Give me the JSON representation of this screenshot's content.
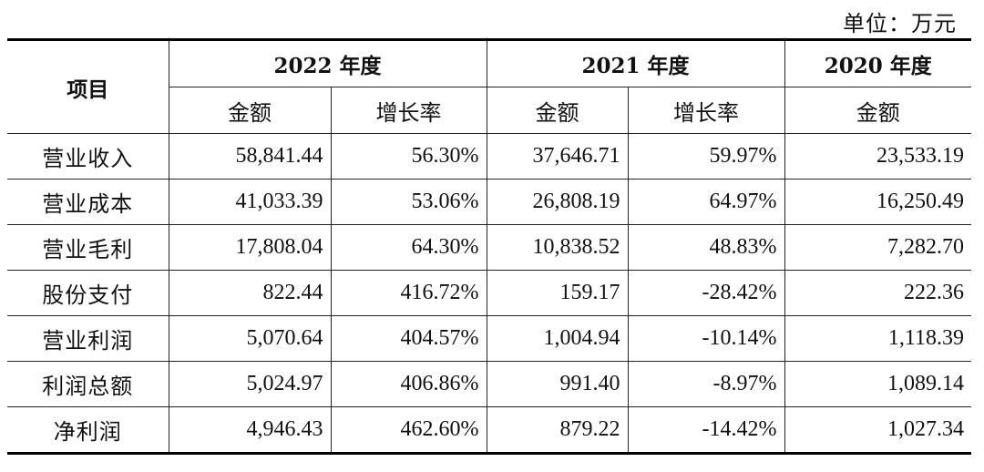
{
  "unit_label": "单位：万元",
  "table": {
    "header_item": "项目",
    "years": [
      {
        "label": "2022 年度"
      },
      {
        "label": "2021 年度"
      },
      {
        "label": "2020 年度"
      }
    ],
    "sub_headers": [
      "金额",
      "增长率",
      "金额",
      "增长率",
      "金额"
    ],
    "rows": [
      {
        "item": "营业收入",
        "v2022": "58,841.44",
        "g2022": "56.30%",
        "v2021": "37,646.71",
        "g2021": "59.97%",
        "v2020": "23,533.19"
      },
      {
        "item": "营业成本",
        "v2022": "41,033.39",
        "g2022": "53.06%",
        "v2021": "26,808.19",
        "g2021": "64.97%",
        "v2020": "16,250.49"
      },
      {
        "item": "营业毛利",
        "v2022": "17,808.04",
        "g2022": "64.30%",
        "v2021": "10,838.52",
        "g2021": "48.83%",
        "v2020": "7,282.70"
      },
      {
        "item": "股份支付",
        "v2022": "822.44",
        "g2022": "416.72%",
        "v2021": "159.17",
        "g2021": "-28.42%",
        "v2020": "222.36"
      },
      {
        "item": "营业利润",
        "v2022": "5,070.64",
        "g2022": "404.57%",
        "v2021": "1,004.94",
        "g2021": "-10.14%",
        "v2020": "1,118.39"
      },
      {
        "item": "利润总额",
        "v2022": "5,024.97",
        "g2022": "406.86%",
        "v2021": "991.40",
        "g2021": "-8.97%",
        "v2020": "1,089.14"
      },
      {
        "item": "净利润",
        "v2022": "4,946.43",
        "g2022": "462.60%",
        "v2021": "879.22",
        "g2021": "-14.42%",
        "v2020": "1,027.34"
      }
    ]
  }
}
